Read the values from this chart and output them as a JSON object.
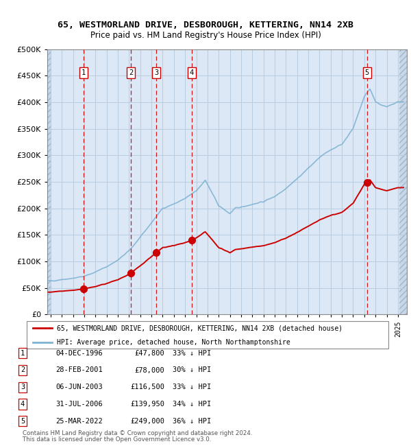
{
  "title1": "65, WESTMORLAND DRIVE, DESBOROUGH, KETTERING, NN14 2XB",
  "title2": "Price paid vs. HM Land Registry's House Price Index (HPI)",
  "sale_dates": [
    1996.92,
    2001.16,
    2003.43,
    2006.58,
    2022.23
  ],
  "sale_prices": [
    47800,
    78000,
    116500,
    139950,
    249000
  ],
  "sale_labels": [
    "1",
    "2",
    "3",
    "4",
    "5"
  ],
  "sale_date_strings": [
    "04-DEC-1996",
    "28-FEB-2001",
    "06-JUN-2003",
    "31-JUL-2006",
    "25-MAR-2022"
  ],
  "sale_price_strings": [
    "£47,800",
    "£78,000",
    "£116,500",
    "£139,950",
    "£249,000"
  ],
  "sale_hpi_strings": [
    "33% ↓ HPI",
    "30% ↓ HPI",
    "33% ↓ HPI",
    "34% ↓ HPI",
    "36% ↓ HPI"
  ],
  "hpi_color": "#7fb3d3",
  "sale_color": "#cc0000",
  "legend_label_sale": "65, WESTMORLAND DRIVE, DESBOROUGH, KETTERING, NN14 2XB (detached house)",
  "legend_label_hpi": "HPI: Average price, detached house, North Northamptonshire",
  "footer1": "Contains HM Land Registry data © Crown copyright and database right 2024.",
  "footer2": "This data is licensed under the Open Government Licence v3.0.",
  "ylim_max": 500000,
  "bg_color": "#dce8f5",
  "grid_color": "#b8cce0",
  "label_box_color": "#cc0000",
  "hatch_color": "#c8d8eb"
}
